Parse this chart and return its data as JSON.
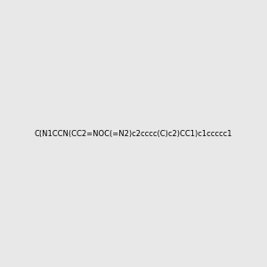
{
  "smiles": "C(N1CCN(CC2=NOC(=N2)c2cccc(C)c2)CC1)c1ccccc1",
  "title": "",
  "bg_color": "#e8e8e8",
  "figsize": [
    3.0,
    3.0
  ],
  "dpi": 100
}
